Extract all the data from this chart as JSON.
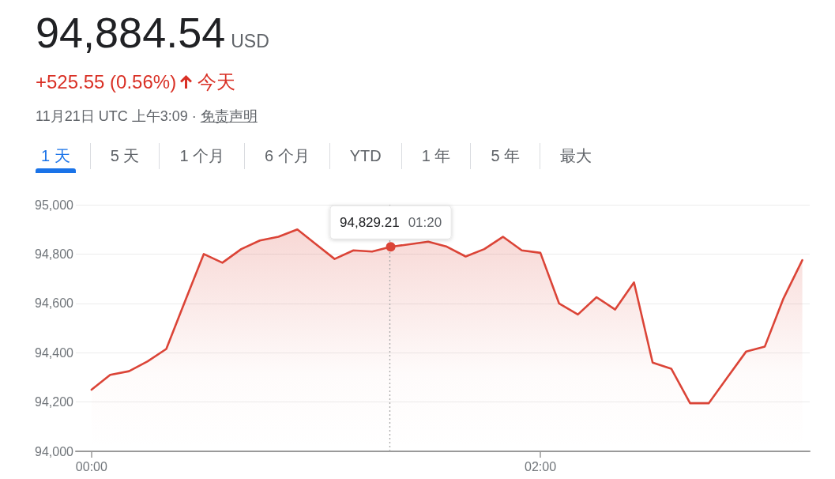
{
  "chart_data": {
    "type": "area",
    "title": "94,884.54",
    "subtitle": "+525.55 (0.56%)",
    "annotations": [
      "USD",
      "今天",
      "11月21日 UTC 上午3:09 ·",
      "免责声明",
      "1 天",
      "5 天",
      "1 个月",
      "6 个月",
      "YTD",
      "1 年",
      "5 年",
      "最大",
      {
        "text": "94,829.21 01:20",
        "x": 1.333,
        "y": 94829.21
      }
    ],
    "x": [
      0,
      0.083,
      0.167,
      0.25,
      0.333,
      0.417,
      0.5,
      0.583,
      0.667,
      0.75,
      0.833,
      0.917,
      1,
      1.083,
      1.167,
      1.25,
      1.333,
      1.417,
      1.5,
      1.583,
      1.667,
      1.75,
      1.833,
      1.917,
      2,
      2.083,
      2.167,
      2.25,
      2.333,
      2.417,
      2.5,
      2.583,
      2.667,
      2.75,
      2.833,
      2.917,
      3,
      3.083,
      3.167
    ],
    "values": [
      94250,
      94310,
      94325,
      94365,
      94415,
      94610,
      94800,
      94765,
      94820,
      94855,
      94870,
      94900,
      94840,
      94780,
      94815,
      94810,
      94829.21,
      null,
      94850,
      94830,
      94790,
      94820,
      94870,
      94815,
      94805,
      94600,
      94555,
      94625,
      94575,
      94685,
      94360,
      94335,
      94195,
      94195,
      94300,
      94405,
      94425,
      94620,
      94775
    ],
    "color": "#db4437",
    "xlim": [
      -0.07,
      3.2
    ],
    "xticks": [
      {
        "value": 0,
        "label": "00:00"
      },
      {
        "value": 2,
        "label": "02:00"
      }
    ],
    "ylim": [
      94000,
      95000
    ],
    "yticks": [
      {
        "value": 94000,
        "label": "94,000"
      },
      {
        "value": 94200,
        "label": "94,200"
      },
      {
        "value": 94400,
        "label": "94,400"
      },
      {
        "value": 94600,
        "label": "94,600"
      },
      {
        "value": 94800,
        "label": "94,800"
      },
      {
        "value": 95000,
        "label": "95,000"
      }
    ],
    "ref_lines": [
      {
        "axis": "x",
        "value": 1.333,
        "color": "#a8a8a8",
        "line_style": "dotted"
      }
    ],
    "grid": "y",
    "marker": "none",
    "line_style": "solid"
  }
}
